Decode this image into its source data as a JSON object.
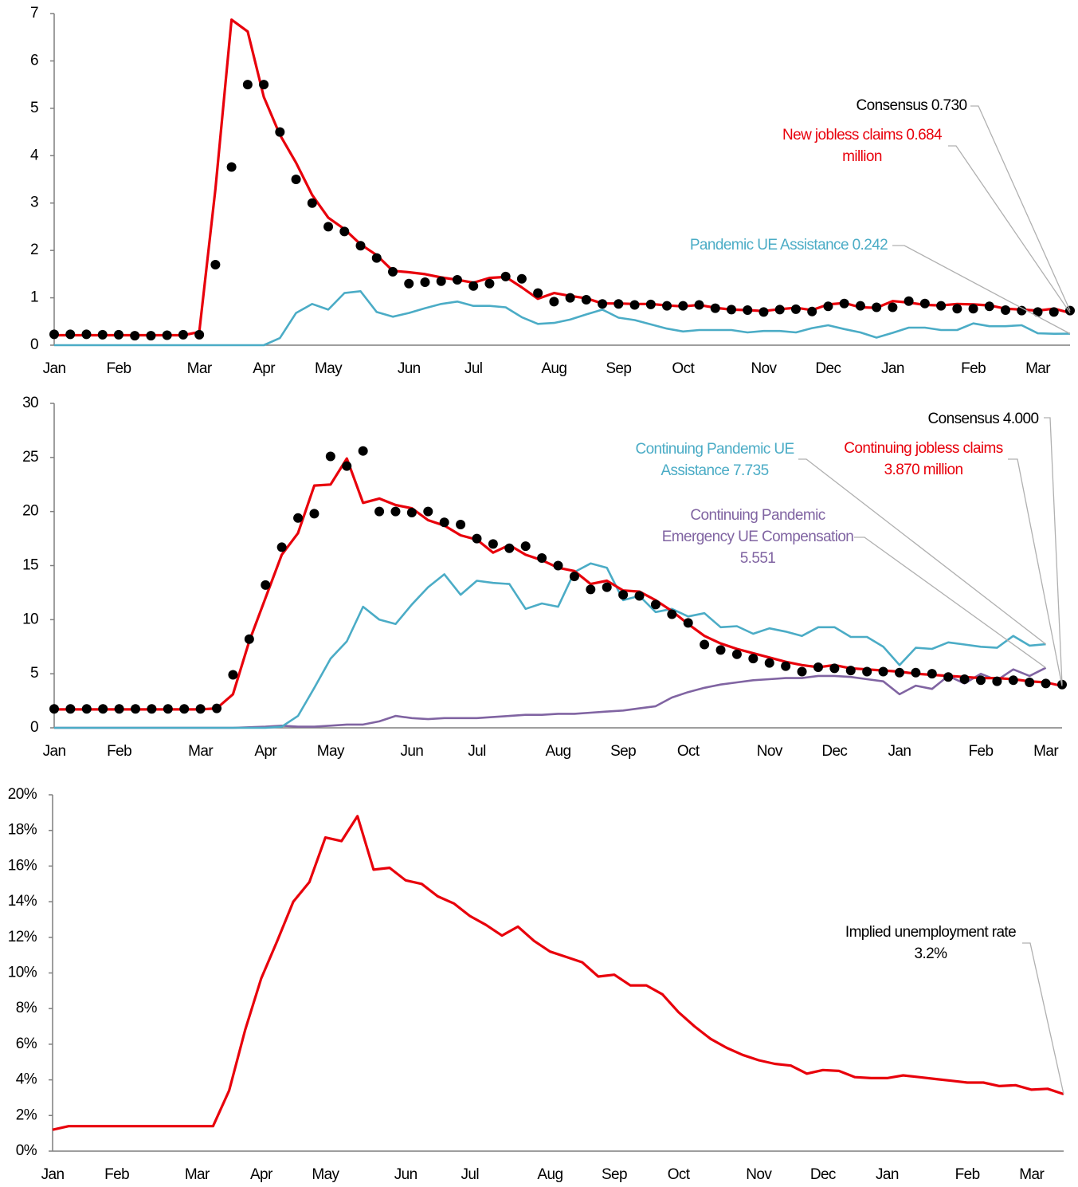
{
  "chart_data": [
    {
      "type": "line",
      "categories": [
        "Jan",
        null,
        null,
        null,
        "Feb",
        null,
        null,
        null,
        null,
        "Mar",
        null,
        null,
        null,
        "Apr",
        null,
        null,
        null,
        "May",
        null,
        null,
        null,
        null,
        "Jun",
        null,
        null,
        null,
        "Jul",
        null,
        null,
        null,
        null,
        "Aug",
        null,
        null,
        null,
        "Sep",
        null,
        null,
        null,
        "Oct",
        null,
        null,
        null,
        null,
        "Nov",
        null,
        null,
        null,
        "Dec",
        null,
        null,
        null,
        "Jan",
        null,
        null,
        null,
        null,
        "Feb",
        null,
        null,
        null,
        "Mar",
        null,
        null
      ],
      "ylim": [
        0,
        7
      ],
      "yticks": [
        0,
        1,
        2,
        3,
        4,
        5,
        6,
        7
      ],
      "series": [
        {
          "name": "Pandemic UE Assistance",
          "color": "#4bacc6",
          "style": "line",
          "values": [
            0,
            0,
            0,
            0,
            0,
            0,
            0,
            0,
            0,
            0,
            0,
            0,
            0,
            0,
            0.15,
            0.68,
            0.87,
            0.75,
            1.1,
            1.14,
            0.7,
            0.6,
            0.68,
            0.78,
            0.87,
            0.92,
            0.83,
            0.83,
            0.8,
            0.59,
            0.45,
            0.47,
            0.54,
            0.65,
            0.75,
            0.58,
            0.53,
            0.44,
            0.35,
            0.29,
            0.32,
            0.32,
            0.32,
            0.27,
            0.3,
            0.3,
            0.27,
            0.36,
            0.42,
            0.34,
            0.27,
            0.16,
            0.26,
            0.37,
            0.37,
            0.32,
            0.32,
            0.46,
            0.4,
            0.4,
            0.42,
            0.25,
            0.24,
            0.242
          ]
        },
        {
          "name": "New jobless claims",
          "color": "#e8000b",
          "style": "line",
          "values": [
            0.21,
            0.21,
            0.21,
            0.21,
            0.21,
            0.21,
            0.21,
            0.21,
            0.21,
            0.28,
            3.3,
            6.87,
            6.62,
            5.24,
            4.44,
            3.85,
            3.17,
            2.69,
            2.45,
            2.13,
            1.9,
            1.57,
            1.54,
            1.5,
            1.43,
            1.38,
            1.32,
            1.42,
            1.44,
            1.22,
            0.98,
            1.1,
            1.04,
            0.99,
            0.88,
            0.88,
            0.87,
            0.87,
            0.84,
            0.82,
            0.85,
            0.79,
            0.75,
            0.74,
            0.72,
            0.76,
            0.79,
            0.74,
            0.86,
            0.89,
            0.8,
            0.79,
            0.93,
            0.9,
            0.85,
            0.84,
            0.87,
            0.86,
            0.84,
            0.77,
            0.75,
            0.73,
            0.77,
            0.684
          ]
        },
        {
          "name": "Consensus",
          "color": "#000000",
          "style": "markers",
          "values": [
            0.23,
            0.23,
            0.23,
            0.22,
            0.22,
            0.2,
            0.2,
            0.21,
            0.22,
            0.22,
            1.7,
            3.76,
            5.5,
            5.5,
            4.5,
            3.5,
            3,
            2.5,
            2.4,
            2.1,
            1.84,
            1.55,
            1.3,
            1.33,
            1.35,
            1.38,
            1.25,
            1.3,
            1.45,
            1.4,
            1.1,
            0.92,
            1,
            0.96,
            0.87,
            0.87,
            0.85,
            0.86,
            0.83,
            0.83,
            0.85,
            0.78,
            0.75,
            0.74,
            0.7,
            0.75,
            0.76,
            0.71,
            0.82,
            0.88,
            0.83,
            0.8,
            0.8,
            0.93,
            0.88,
            0.83,
            0.77,
            0.77,
            0.82,
            0.74,
            0.73,
            0.7,
            0.7,
            0.73
          ]
        }
      ],
      "annotations": [
        {
          "lines": [
            "Consensus 0.730"
          ],
          "color": "#000000"
        },
        {
          "lines": [
            "New jobless claims 0.684",
            "million"
          ],
          "color": "#e8000b"
        },
        {
          "lines": [
            "Pandemic UE Assistance 0.242"
          ],
          "color": "#4bacc6"
        }
      ]
    },
    {
      "type": "line",
      "categories": [
        "Jan",
        null,
        null,
        null,
        "Feb",
        null,
        null,
        null,
        null,
        "Mar",
        null,
        null,
        null,
        "Apr",
        null,
        null,
        null,
        "May",
        null,
        null,
        null,
        null,
        "Jun",
        null,
        null,
        null,
        "Jul",
        null,
        null,
        null,
        null,
        "Aug",
        null,
        null,
        null,
        "Sep",
        null,
        null,
        null,
        "Oct",
        null,
        null,
        null,
        null,
        "Nov",
        null,
        null,
        null,
        "Dec",
        null,
        null,
        null,
        "Jan",
        null,
        null,
        null,
        null,
        "Feb",
        null,
        null,
        null,
        "Mar",
        null
      ],
      "ylim": [
        0,
        30
      ],
      "yticks": [
        0,
        5,
        10,
        15,
        20,
        25,
        30
      ],
      "series": [
        {
          "name": "Continuing Pandemic Emergency UE Compensation",
          "color": "#8064a2",
          "style": "line",
          "values": [
            0,
            0,
            0,
            0,
            0,
            0,
            0,
            0,
            0,
            0,
            0,
            0,
            0.05,
            0.1,
            0.2,
            0.1,
            0.1,
            0.2,
            0.3,
            0.3,
            0.6,
            1.1,
            0.9,
            0.8,
            0.9,
            0.9,
            0.9,
            1,
            1.1,
            1.2,
            1.2,
            1.3,
            1.3,
            1.4,
            1.5,
            1.6,
            1.8,
            2,
            2.8,
            3.3,
            3.7,
            4,
            4.2,
            4.4,
            4.5,
            4.6,
            4.6,
            4.8,
            4.8,
            4.7,
            4.5,
            4.3,
            3.1,
            3.9,
            3.6,
            4.8,
            4.1,
            5,
            4.4,
            5.4,
            4.8,
            5.551,
            null
          ]
        },
        {
          "name": "Continuing Pandemic UE Assistance",
          "color": "#4bacc6",
          "style": "line",
          "values": [
            0,
            0,
            0,
            0,
            0,
            0,
            0,
            0,
            0,
            0,
            0,
            0,
            0,
            0,
            0.1,
            1.1,
            3.7,
            6.4,
            8,
            11.2,
            10,
            9.6,
            11.4,
            13,
            14.2,
            12.3,
            13.6,
            13.4,
            13.3,
            11,
            11.5,
            11.2,
            14.4,
            15.2,
            14.8,
            11.8,
            12.2,
            10.7,
            11,
            10.3,
            10.6,
            9.3,
            9.4,
            8.7,
            9.2,
            8.9,
            8.5,
            9.3,
            9.3,
            8.4,
            8.4,
            7.5,
            5.8,
            7.4,
            7.3,
            7.9,
            7.7,
            7.5,
            7.4,
            8.5,
            7.6,
            7.735,
            null
          ]
        },
        {
          "name": "Continuing jobless claims",
          "color": "#e8000b",
          "style": "line",
          "values": [
            1.7,
            1.7,
            1.7,
            1.7,
            1.7,
            1.7,
            1.7,
            1.7,
            1.7,
            1.7,
            1.8,
            3.1,
            8,
            12,
            16,
            18,
            22.4,
            22.5,
            24.9,
            20.8,
            21.2,
            20.6,
            20.3,
            19.2,
            18.7,
            17.8,
            17.4,
            16.2,
            16.9,
            16,
            15.5,
            14.8,
            14.5,
            13.3,
            13.6,
            12.7,
            12.6,
            11.8,
            10.8,
            9.6,
            8.5,
            7.8,
            7.3,
            6.9,
            6.5,
            6.1,
            5.8,
            5.6,
            5.8,
            5.5,
            5.4,
            5.3,
            5.2,
            5,
            4.9,
            4.8,
            4.7,
            4.6,
            4.6,
            4.5,
            4.3,
            4.2,
            3.87
          ]
        },
        {
          "name": "Consensus",
          "color": "#000000",
          "style": "markers",
          "values": [
            1.75,
            1.75,
            1.75,
            1.75,
            1.75,
            1.75,
            1.75,
            1.75,
            1.75,
            1.75,
            1.8,
            4.9,
            8.2,
            13.2,
            16.7,
            19.4,
            19.8,
            25.1,
            24.2,
            25.6,
            20,
            20,
            19.9,
            20,
            19,
            18.8,
            17.5,
            17,
            16.6,
            16.8,
            15.7,
            15,
            14,
            12.8,
            13,
            12.3,
            12.2,
            11.4,
            10.5,
            9.7,
            7.7,
            7.2,
            6.8,
            6.4,
            6,
            5.7,
            5.2,
            5.6,
            5.5,
            5.3,
            5.2,
            5.2,
            5.1,
            5.1,
            5,
            4.7,
            4.5,
            4.4,
            4.3,
            4.4,
            4.2,
            4.1,
            4
          ]
        }
      ],
      "annotations": [
        {
          "lines": [
            "Consensus 4.000"
          ],
          "color": "#000000"
        },
        {
          "lines": [
            "Continuing jobless claims",
            "3.870 million"
          ],
          "color": "#e8000b"
        },
        {
          "lines": [
            "Continuing Pandemic UE",
            "Assistance 7.735"
          ],
          "color": "#4bacc6"
        },
        {
          "lines": [
            "Continuing Pandemic",
            "Emergency UE Compensation",
            "5.551"
          ],
          "color": "#8064a2"
        }
      ]
    },
    {
      "type": "line",
      "categories": [
        "Jan",
        null,
        null,
        null,
        "Feb",
        null,
        null,
        null,
        null,
        "Mar",
        null,
        null,
        null,
        "Apr",
        null,
        null,
        null,
        "May",
        null,
        null,
        null,
        null,
        "Jun",
        null,
        null,
        null,
        "Jul",
        null,
        null,
        null,
        null,
        "Aug",
        null,
        null,
        null,
        "Sep",
        null,
        null,
        null,
        "Oct",
        null,
        null,
        null,
        null,
        "Nov",
        null,
        null,
        null,
        "Dec",
        null,
        null,
        null,
        "Jan",
        null,
        null,
        null,
        null,
        "Feb",
        null,
        null,
        null,
        "Mar",
        null,
        null
      ],
      "ylim": [
        0,
        20
      ],
      "yticks": [
        {
          "value": 0,
          "label": "0%"
        },
        {
          "value": 2,
          "label": "2%"
        },
        {
          "value": 4,
          "label": "4%"
        },
        {
          "value": 6,
          "label": "6%"
        },
        {
          "value": 8,
          "label": "8%"
        },
        {
          "value": 10,
          "label": "10%"
        },
        {
          "value": 12,
          "label": "12%"
        },
        {
          "value": 14,
          "label": "14%"
        },
        {
          "value": 16,
          "label": "16%"
        },
        {
          "value": 18,
          "label": "18%"
        },
        {
          "value": 20,
          "label": "20%"
        }
      ],
      "series": [
        {
          "name": "Implied unemployment rate",
          "color": "#e8000b",
          "style": "line",
          "values": [
            1.2,
            1.4,
            1.4,
            1.4,
            1.4,
            1.4,
            1.4,
            1.4,
            1.4,
            1.4,
            1.4,
            3.4,
            6.8,
            9.7,
            11.8,
            14,
            15.1,
            17.6,
            17.4,
            18.8,
            15.8,
            15.9,
            15.2,
            15,
            14.3,
            13.9,
            13.2,
            12.7,
            12.1,
            12.6,
            11.8,
            11.2,
            10.9,
            10.6,
            9.8,
            9.9,
            9.3,
            9.3,
            8.8,
            7.8,
            7,
            6.3,
            5.8,
            5.4,
            5.1,
            4.9,
            4.8,
            4.35,
            4.55,
            4.5,
            4.15,
            4.1,
            4.1,
            4.25,
            4.15,
            4.05,
            3.95,
            3.85,
            3.85,
            3.65,
            3.7,
            3.45,
            3.5,
            3.2
          ]
        }
      ],
      "annotations": [
        {
          "lines": [
            "Implied unemployment rate",
            "3.2%"
          ],
          "color": "#000000"
        }
      ]
    }
  ]
}
